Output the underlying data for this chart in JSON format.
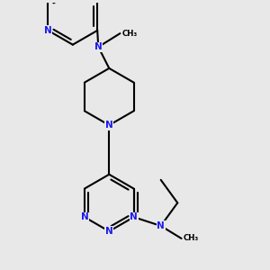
{
  "bg_color": "#e8e8e8",
  "bond_color": "#000000",
  "atom_color": "#1a1aee",
  "bond_lw": 1.5,
  "font_size": 7.5,
  "BL": 0.088,
  "dbl_off": 0.011,
  "dbl_shr": 0.013,
  "xlim": [
    0.1,
    0.88
  ],
  "ylim": [
    0.1,
    0.92
  ]
}
